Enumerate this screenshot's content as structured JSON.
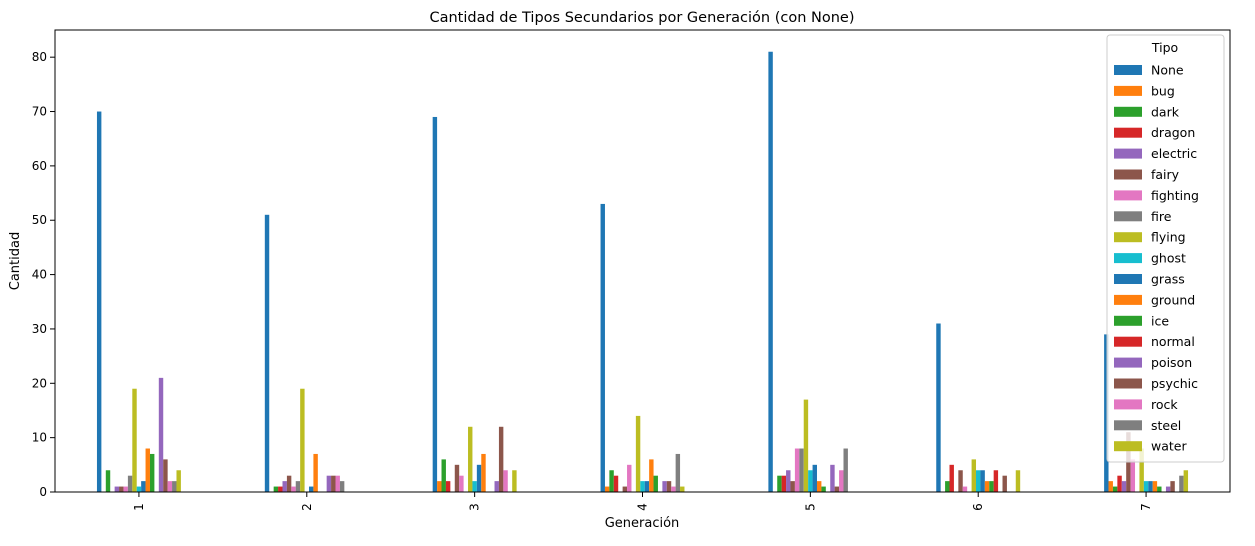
{
  "chart_data": {
    "type": "bar",
    "title": "Cantidad de Tipos Secundarios por Generación (con None)",
    "xlabel": "Generación",
    "ylabel": "Cantidad",
    "ylim": [
      0,
      85
    ],
    "yticks": [
      0,
      10,
      20,
      30,
      40,
      50,
      60,
      70,
      80
    ],
    "grid": false,
    "legend_title": "Tipo",
    "legend_position": "top-right",
    "categories": [
      "1",
      "2",
      "3",
      "4",
      "5",
      "6",
      "7"
    ],
    "series": [
      {
        "name": "None",
        "color": "#1f77b4",
        "values": [
          70,
          51,
          69,
          53,
          81,
          31,
          29
        ]
      },
      {
        "name": "bug",
        "color": "#ff7f0e",
        "values": [
          0,
          0,
          2,
          1,
          0,
          0,
          2
        ]
      },
      {
        "name": "dark",
        "color": "#2ca02c",
        "values": [
          4,
          1,
          6,
          4,
          3,
          2,
          1
        ]
      },
      {
        "name": "dragon",
        "color": "#d62728",
        "values": [
          0,
          1,
          2,
          3,
          3,
          5,
          3
        ]
      },
      {
        "name": "electric",
        "color": "#9467bd",
        "values": [
          1,
          2,
          0,
          0,
          4,
          0,
          2
        ]
      },
      {
        "name": "fairy",
        "color": "#8c564b",
        "values": [
          1,
          3,
          5,
          1,
          2,
          4,
          11
        ]
      },
      {
        "name": "fighting",
        "color": "#e377c2",
        "values": [
          1,
          1,
          3,
          5,
          8,
          1,
          6
        ]
      },
      {
        "name": "fire",
        "color": "#7f7f7f",
        "values": [
          3,
          2,
          0,
          0,
          8,
          0,
          0
        ]
      },
      {
        "name": "flying",
        "color": "#bcbd22",
        "values": [
          19,
          19,
          12,
          14,
          17,
          6,
          8
        ]
      },
      {
        "name": "ghost",
        "color": "#17becf",
        "values": [
          1,
          0,
          2,
          2,
          4,
          4,
          2
        ]
      },
      {
        "name": "grass",
        "color": "#1f77b4",
        "values": [
          2,
          1,
          5,
          2,
          5,
          4,
          2
        ]
      },
      {
        "name": "ground",
        "color": "#ff7f0e",
        "values": [
          8,
          7,
          7,
          6,
          2,
          2,
          2
        ]
      },
      {
        "name": "ice",
        "color": "#2ca02c",
        "values": [
          7,
          0,
          0,
          3,
          1,
          2,
          1
        ]
      },
      {
        "name": "normal",
        "color": "#d62728",
        "values": [
          0,
          0,
          0,
          0,
          0,
          4,
          0
        ]
      },
      {
        "name": "poison",
        "color": "#9467bd",
        "values": [
          21,
          3,
          2,
          2,
          5,
          0,
          1
        ]
      },
      {
        "name": "psychic",
        "color": "#8c564b",
        "values": [
          6,
          3,
          12,
          2,
          1,
          3,
          2
        ]
      },
      {
        "name": "rock",
        "color": "#e377c2",
        "values": [
          2,
          3,
          4,
          1,
          4,
          0,
          0
        ]
      },
      {
        "name": "steel",
        "color": "#7f7f7f",
        "values": [
          2,
          2,
          0,
          7,
          8,
          0,
          3
        ]
      },
      {
        "name": "water",
        "color": "#bcbd22",
        "values": [
          4,
          0,
          4,
          1,
          0,
          4,
          4
        ]
      }
    ]
  }
}
